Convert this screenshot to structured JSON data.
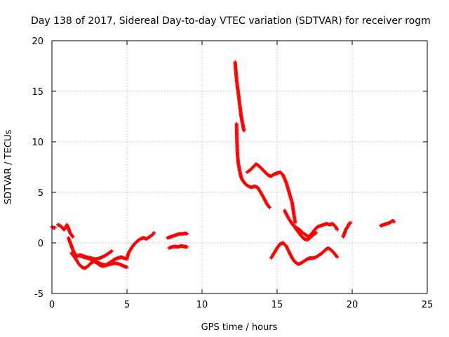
{
  "chart_data": {
    "type": "scatter",
    "title": "Day 138 of 2017, Sidereal Day-to-day VTEC variation (SDTVAR) for receiver rogm",
    "xlabel": "GPS time / hours",
    "ylabel": "SDTVAR / TECUs",
    "xlim": [
      0,
      25
    ],
    "ylim": [
      -5,
      20
    ],
    "xticks": [
      "0",
      "5",
      "10",
      "15",
      "20",
      "25"
    ],
    "yticks": [
      "-5",
      "0",
      "5",
      "10",
      "15",
      "20"
    ],
    "grid": true,
    "marker": "plus",
    "color": "#ff0000",
    "series": [
      {
        "name": "a1",
        "points": [
          [
            0,
            1.6
          ],
          [
            0.1,
            1.5
          ],
          [
            0.2,
            1.5
          ]
        ]
      },
      {
        "name": "a2",
        "points": [
          [
            0.4,
            1.8
          ],
          [
            0.55,
            1.7
          ],
          [
            0.7,
            1.5
          ],
          [
            0.8,
            1.3
          ],
          [
            0.9,
            1.5
          ],
          [
            1.0,
            1.8
          ],
          [
            1.1,
            1.5
          ],
          [
            1.2,
            1.0
          ],
          [
            1.3,
            0.8
          ],
          [
            1.4,
            0.6
          ]
        ]
      },
      {
        "name": "a3",
        "points": [
          [
            1.1,
            0.5
          ],
          [
            1.2,
            0.1
          ],
          [
            1.3,
            -0.3
          ],
          [
            1.4,
            -0.7
          ],
          [
            1.5,
            -1.0
          ],
          [
            1.6,
            -1.2
          ],
          [
            1.7,
            -1.3
          ],
          [
            1.9,
            -1.2
          ],
          [
            2.1,
            -1.3
          ],
          [
            2.3,
            -1.4
          ],
          [
            2.6,
            -1.5
          ],
          [
            2.9,
            -1.6
          ],
          [
            3.2,
            -1.5
          ],
          [
            3.5,
            -1.3
          ],
          [
            3.8,
            -1.0
          ],
          [
            4.0,
            -0.8
          ]
        ]
      },
      {
        "name": "a4",
        "points": [
          [
            1.3,
            -1.0
          ],
          [
            1.6,
            -1.6
          ],
          [
            1.8,
            -2.1
          ],
          [
            2.0,
            -2.4
          ],
          [
            2.2,
            -2.5
          ],
          [
            2.4,
            -2.3
          ],
          [
            2.6,
            -2.0
          ],
          [
            2.8,
            -1.8
          ],
          [
            3.0,
            -2.0
          ],
          [
            3.2,
            -2.2
          ],
          [
            3.4,
            -2.3
          ],
          [
            3.6,
            -2.2
          ],
          [
            3.8,
            -2.0
          ],
          [
            4.0,
            -1.8
          ],
          [
            4.2,
            -1.6
          ],
          [
            4.4,
            -1.5
          ],
          [
            4.6,
            -1.4
          ],
          [
            4.8,
            -1.5
          ],
          [
            5.0,
            -1.6
          ]
        ]
      },
      {
        "name": "a5",
        "points": [
          [
            1.8,
            -1.2
          ],
          [
            2.1,
            -1.4
          ],
          [
            2.4,
            -1.5
          ],
          [
            2.7,
            -1.7
          ],
          [
            3.0,
            -1.9
          ],
          [
            3.3,
            -2.1
          ],
          [
            3.6,
            -2.2
          ],
          [
            3.9,
            -2.1
          ],
          [
            4.2,
            -2.0
          ],
          [
            4.5,
            -2.1
          ],
          [
            4.8,
            -2.3
          ],
          [
            5.0,
            -2.4
          ]
        ]
      },
      {
        "name": "a6",
        "points": [
          [
            5.0,
            -1.5
          ],
          [
            5.1,
            -1.0
          ],
          [
            5.3,
            -0.5
          ],
          [
            5.5,
            -0.1
          ],
          [
            5.7,
            0.2
          ],
          [
            5.9,
            0.4
          ],
          [
            6.1,
            0.5
          ],
          [
            6.3,
            0.4
          ],
          [
            6.5,
            0.6
          ],
          [
            6.7,
            0.8
          ],
          [
            6.8,
            1.0
          ]
        ]
      },
      {
        "name": "a7",
        "points": [
          [
            7.7,
            0.5
          ],
          [
            7.9,
            0.6
          ],
          [
            8.1,
            0.7
          ],
          [
            8.3,
            0.8
          ],
          [
            8.5,
            0.9
          ],
          [
            8.7,
            0.9
          ],
          [
            8.9,
            0.95
          ],
          [
            9.0,
            0.9
          ]
        ]
      },
      {
        "name": "a8",
        "points": [
          [
            7.8,
            -0.5
          ],
          [
            8.0,
            -0.4
          ],
          [
            8.2,
            -0.35
          ],
          [
            8.4,
            -0.4
          ],
          [
            8.6,
            -0.3
          ],
          [
            8.8,
            -0.35
          ],
          [
            9.0,
            -0.4
          ]
        ]
      },
      {
        "name": "b1",
        "points": [
          [
            12.2,
            17.9
          ],
          [
            12.25,
            17.0
          ],
          [
            12.3,
            16.2
          ],
          [
            12.35,
            15.5
          ],
          [
            12.4,
            15.0
          ],
          [
            12.45,
            14.4
          ],
          [
            12.5,
            13.8
          ],
          [
            12.55,
            13.2
          ],
          [
            12.6,
            12.6
          ],
          [
            12.65,
            12.2
          ],
          [
            12.7,
            11.8
          ],
          [
            12.75,
            11.4
          ],
          [
            12.8,
            11.1
          ]
        ]
      },
      {
        "name": "b2",
        "points": [
          [
            12.3,
            11.8
          ],
          [
            12.32,
            10.5
          ],
          [
            12.35,
            9.0
          ],
          [
            12.4,
            8.0
          ],
          [
            12.5,
            7.2
          ],
          [
            12.6,
            6.5
          ],
          [
            12.7,
            6.2
          ],
          [
            12.8,
            6.0
          ],
          [
            12.9,
            5.8
          ],
          [
            13.1,
            5.6
          ],
          [
            13.3,
            5.5
          ],
          [
            13.5,
            5.6
          ],
          [
            13.7,
            5.5
          ],
          [
            13.9,
            5.0
          ],
          [
            14.1,
            4.5
          ],
          [
            14.3,
            3.9
          ],
          [
            14.5,
            3.5
          ]
        ]
      },
      {
        "name": "b3",
        "points": [
          [
            13.0,
            7.0
          ],
          [
            13.2,
            7.2
          ],
          [
            13.4,
            7.5
          ],
          [
            13.6,
            7.8
          ],
          [
            13.8,
            7.6
          ],
          [
            14.0,
            7.3
          ],
          [
            14.2,
            7.0
          ],
          [
            14.4,
            6.7
          ],
          [
            14.6,
            6.6
          ],
          [
            14.8,
            6.8
          ],
          [
            15.0,
            6.9
          ],
          [
            15.2,
            7.0
          ],
          [
            15.4,
            6.7
          ],
          [
            15.6,
            6.0
          ],
          [
            15.8,
            5.0
          ],
          [
            16.0,
            4.0
          ],
          [
            16.1,
            3.0
          ],
          [
            16.2,
            2.0
          ]
        ]
      },
      {
        "name": "b4",
        "points": [
          [
            15.5,
            3.2
          ],
          [
            15.7,
            2.6
          ],
          [
            15.9,
            2.1
          ],
          [
            16.1,
            1.7
          ],
          [
            16.3,
            1.5
          ],
          [
            16.5,
            1.3
          ],
          [
            16.7,
            1.0
          ],
          [
            16.9,
            0.8
          ],
          [
            17.1,
            0.6
          ],
          [
            17.3,
            0.9
          ],
          [
            17.5,
            1.3
          ],
          [
            17.7,
            1.6
          ],
          [
            17.9,
            1.7
          ],
          [
            18.1,
            1.8
          ],
          [
            18.3,
            1.9
          ],
          [
            18.5,
            1.8
          ],
          [
            18.7,
            1.9
          ],
          [
            18.9,
            1.6
          ],
          [
            19.0,
            1.3
          ]
        ]
      },
      {
        "name": "b5",
        "points": [
          [
            16.2,
            1.5
          ],
          [
            16.4,
            1.1
          ],
          [
            16.6,
            0.7
          ],
          [
            16.8,
            0.4
          ],
          [
            17.0,
            0.3
          ],
          [
            17.2,
            0.5
          ],
          [
            17.4,
            0.8
          ],
          [
            17.6,
            1.0
          ]
        ]
      },
      {
        "name": "b6",
        "points": [
          [
            14.6,
            -1.5
          ],
          [
            14.8,
            -1.0
          ],
          [
            15.0,
            -0.5
          ],
          [
            15.2,
            -0.1
          ],
          [
            15.4,
            0.0
          ],
          [
            15.6,
            -0.3
          ],
          [
            15.8,
            -0.9
          ],
          [
            16.0,
            -1.5
          ],
          [
            16.2,
            -1.9
          ],
          [
            16.4,
            -2.1
          ],
          [
            16.6,
            -2.0
          ],
          [
            16.8,
            -1.8
          ],
          [
            17.0,
            -1.6
          ],
          [
            17.2,
            -1.5
          ],
          [
            17.4,
            -1.5
          ],
          [
            17.6,
            -1.4
          ],
          [
            17.8,
            -1.2
          ],
          [
            18.0,
            -1.0
          ],
          [
            18.2,
            -0.7
          ],
          [
            18.4,
            -0.5
          ],
          [
            18.6,
            -0.7
          ],
          [
            18.8,
            -1.0
          ],
          [
            19.0,
            -1.4
          ]
        ]
      },
      {
        "name": "b7",
        "points": [
          [
            19.4,
            0.6
          ],
          [
            19.5,
            1.0
          ],
          [
            19.6,
            1.4
          ],
          [
            19.7,
            1.6
          ],
          [
            19.8,
            1.9
          ],
          [
            19.9,
            2.0
          ]
        ]
      },
      {
        "name": "b8",
        "points": [
          [
            21.9,
            1.7
          ],
          [
            22.1,
            1.8
          ],
          [
            22.3,
            1.9
          ],
          [
            22.5,
            2.0
          ],
          [
            22.7,
            2.2
          ],
          [
            22.8,
            2.1
          ]
        ]
      }
    ]
  }
}
